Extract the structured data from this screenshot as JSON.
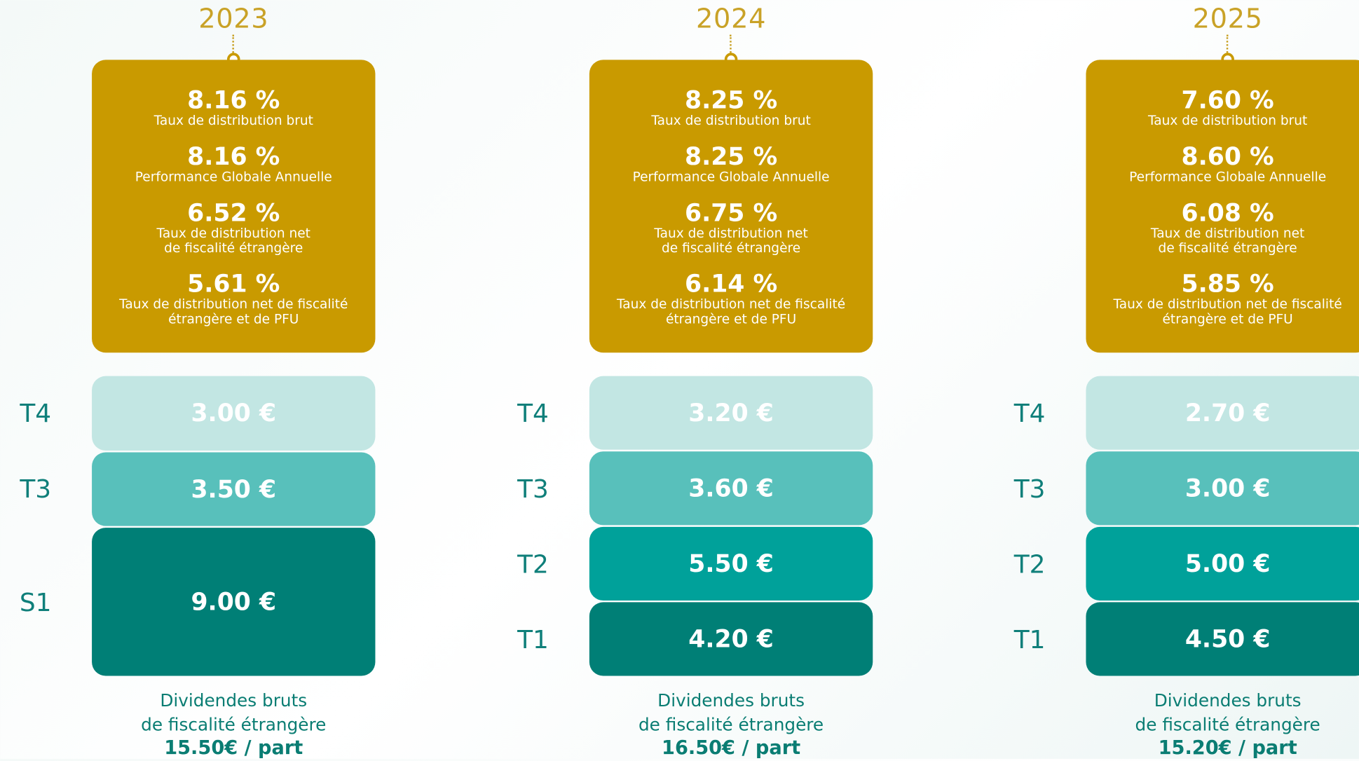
{
  "columns": [
    {
      "year": "2023",
      "stats": [
        {
          "value": "8.16 %",
          "label": "Taux de distribution brut"
        },
        {
          "value": "8.16 %",
          "label": "Performance Globale Annuelle"
        },
        {
          "value": "6.52 %",
          "label": "Taux de distribution net\nde fiscalité étrangère"
        },
        {
          "value": "5.61 %",
          "label": "Taux de distribution net de fiscalité\nétrangère et de PFU"
        }
      ],
      "dividends": [
        {
          "period": "T4",
          "amount": "3.00 €"
        },
        {
          "period": "T3",
          "amount": "3.50 €"
        },
        {
          "period": "S1",
          "amount": "9.00 €"
        }
      ],
      "footer": [
        "Dividendes bruts",
        "de fiscalité étrangère",
        "15.50€ / part"
      ]
    },
    {
      "year": "2024",
      "stats": [
        {
          "value": "8.25 %",
          "label": "Taux de distribution brut"
        },
        {
          "value": "8.25 %",
          "label": "Performance Globale Annuelle"
        },
        {
          "value": "6.75 %",
          "label": "Taux de distribution net\nde fiscalité étrangère"
        },
        {
          "value": "6.14 %",
          "label": "Taux de distribution net de fiscalité\nétrangère et de PFU"
        }
      ],
      "dividends": [
        {
          "period": "T4",
          "amount": "3.20 €"
        },
        {
          "period": "T3",
          "amount": "3.60 €"
        },
        {
          "period": "T2",
          "amount": "5.50 €"
        },
        {
          "period": "T1",
          "amount": "4.20 €"
        }
      ],
      "footer": [
        "Dividendes bruts",
        "de fiscalité étrangère",
        "16.50€ / part"
      ]
    },
    {
      "year": "2025",
      "stats": [
        {
          "value": "7.60 %",
          "label": "Taux de distribution brut"
        },
        {
          "value": "8.60 %",
          "label": "Performance Globale Annuelle"
        },
        {
          "value": "6.08 %",
          "label": "Taux de distribution net\nde fiscalité étrangère"
        },
        {
          "value": "5.85 %",
          "label": "Taux de distribution net de fiscalité\nétrangère et de PFU"
        }
      ],
      "dividends": [
        {
          "period": "T4",
          "amount": "2.70 €"
        },
        {
          "period": "T3",
          "amount": "3.00 €"
        },
        {
          "period": "T2",
          "amount": "5.00 €"
        },
        {
          "period": "T1",
          "amount": "4.50 €"
        }
      ],
      "footer": [
        "Dividendes bruts",
        "de fiscalité étrangère",
        "15.20€ / part"
      ]
    }
  ]
}
